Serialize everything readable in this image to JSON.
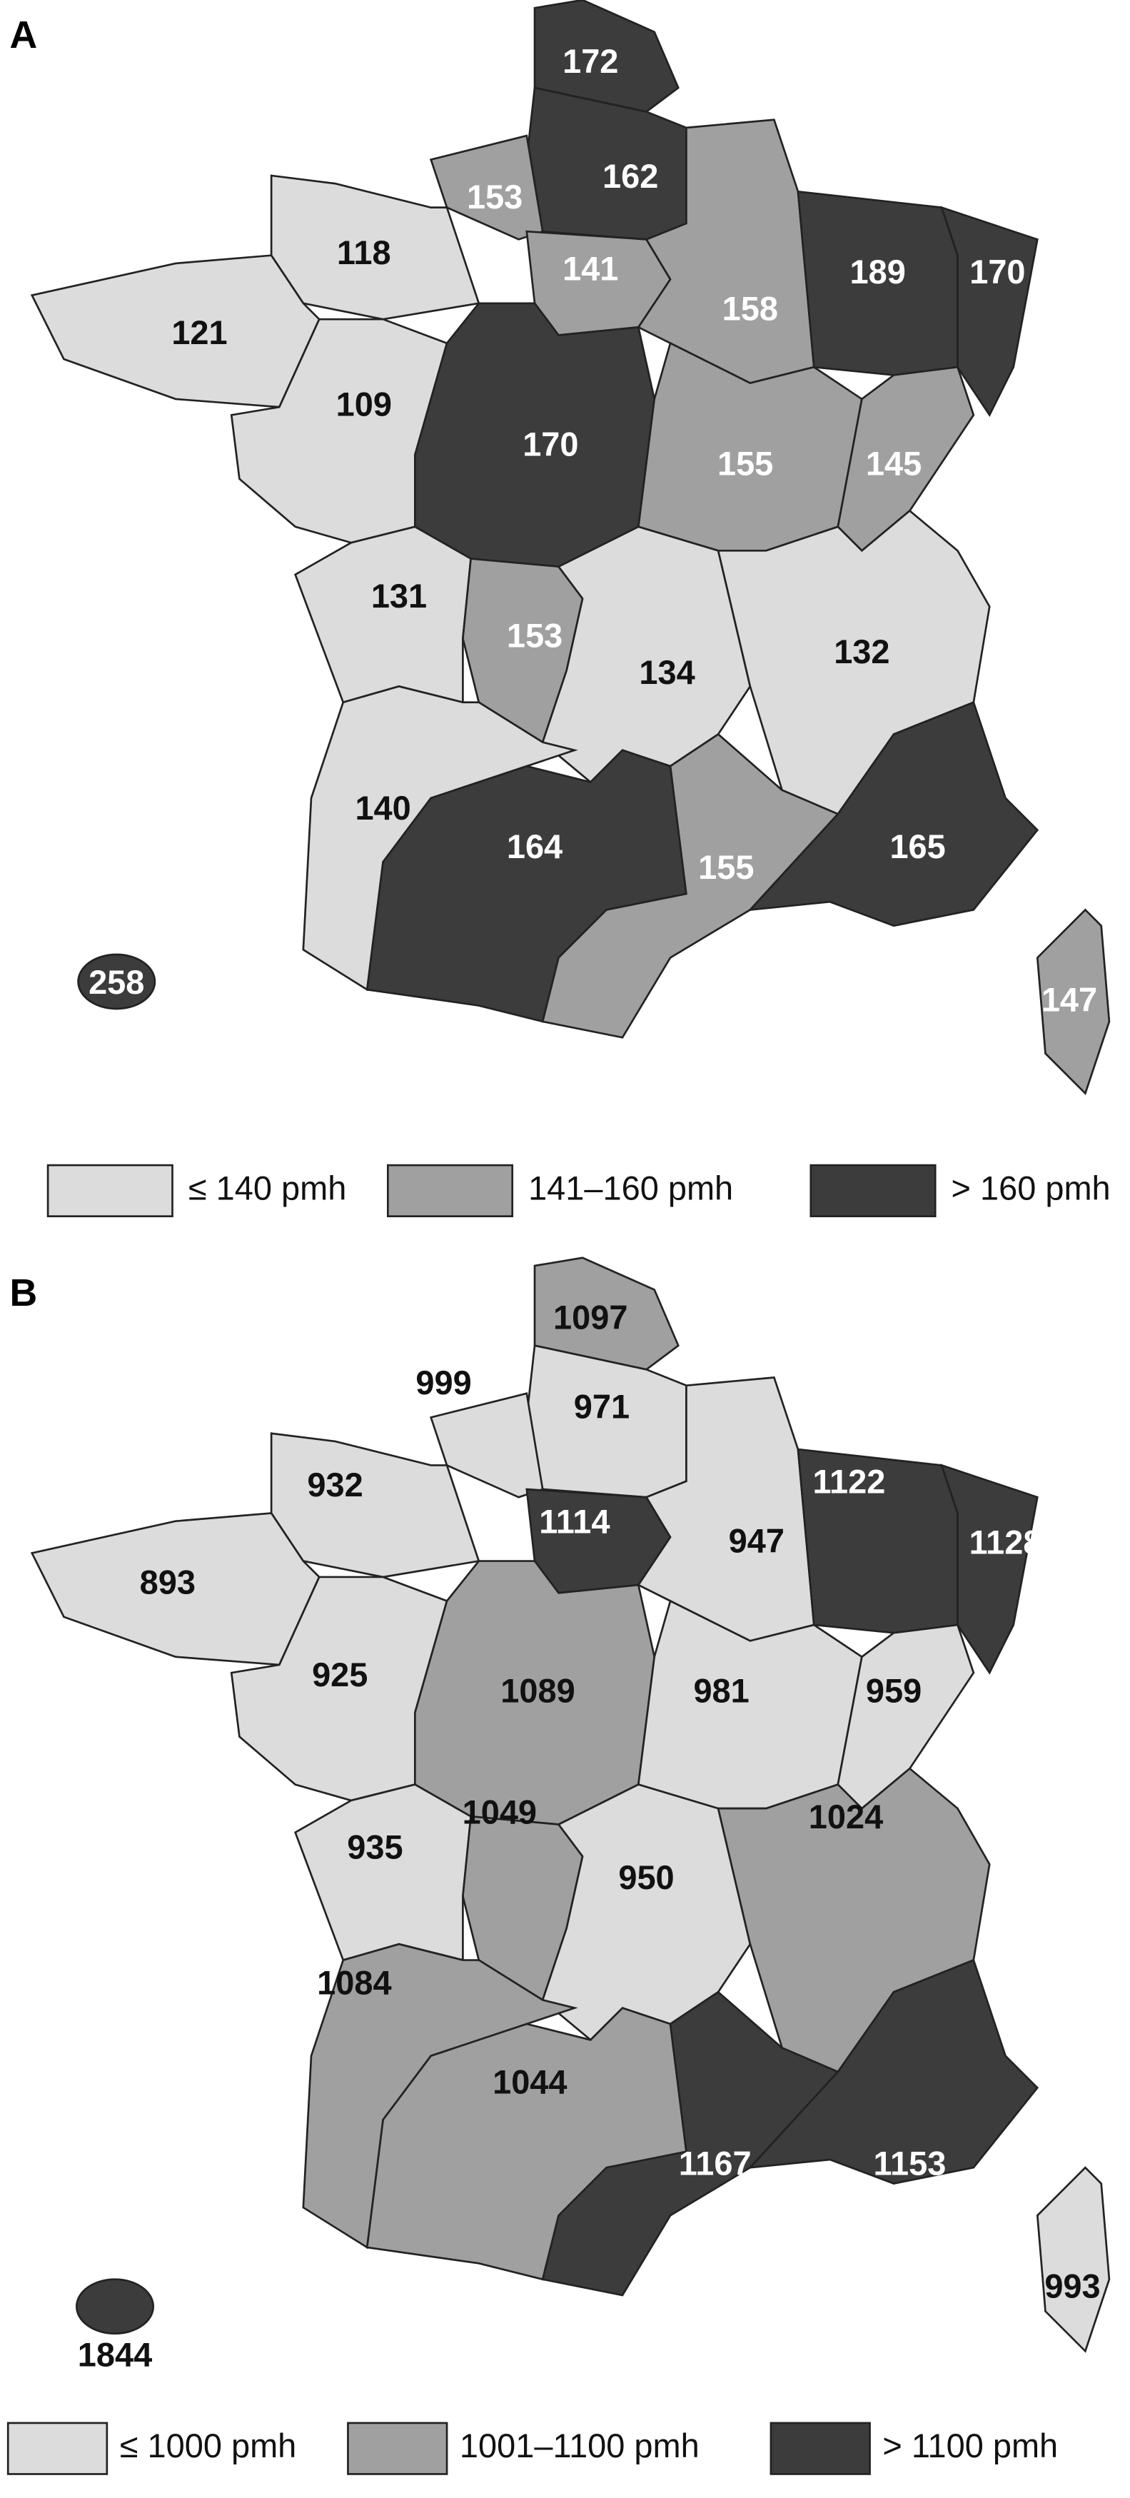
{
  "panels": [
    {
      "label": "A",
      "legend": [
        {
          "label": "≤ 140 pmh",
          "color": "#dcdcdc",
          "text_color": "#111111"
        },
        {
          "label": "141–160 pmh",
          "color": "#a0a0a0",
          "text_color": "#ffffff"
        },
        {
          "label": "> 160 pmh",
          "color": "#3c3c3c",
          "text_color": "#ffffff"
        }
      ],
      "regions": [
        {
          "value": 172,
          "class": 2
        },
        {
          "value": 162,
          "class": 2
        },
        {
          "value": 153,
          "class": 1
        },
        {
          "value": 118,
          "class": 0
        },
        {
          "value": 141,
          "class": 1
        },
        {
          "value": 158,
          "class": 1
        },
        {
          "value": 189,
          "class": 2
        },
        {
          "value": 170,
          "class": 2
        },
        {
          "value": 121,
          "class": 0
        },
        {
          "value": 109,
          "class": 0
        },
        {
          "value": 170,
          "class": 2
        },
        {
          "value": 155,
          "class": 1
        },
        {
          "value": 145,
          "class": 1
        },
        {
          "value": 131,
          "class": 0
        },
        {
          "value": 153,
          "class": 1
        },
        {
          "value": 134,
          "class": 0
        },
        {
          "value": 132,
          "class": 0
        },
        {
          "value": 140,
          "class": 0
        },
        {
          "value": 164,
          "class": 2
        },
        {
          "value": 155,
          "class": 1
        },
        {
          "value": 165,
          "class": 2
        },
        {
          "value": 258,
          "class": 2
        },
        {
          "value": 147,
          "class": 1
        }
      ]
    },
    {
      "label": "B",
      "legend": [
        {
          "label": "≤ 1000 pmh",
          "color": "#dcdcdc",
          "text_color": "#111111"
        },
        {
          "label": "1001–1100 pmh",
          "color": "#a0a0a0",
          "text_color": "#111111"
        },
        {
          "label": "> 1100 pmh",
          "color": "#3c3c3c",
          "text_color": "#ffffff"
        }
      ],
      "regions": [
        {
          "value": 1097,
          "class": 1
        },
        {
          "value": 971,
          "class": 0
        },
        {
          "value": 999,
          "class": 0
        },
        {
          "value": 932,
          "class": 0
        },
        {
          "value": 1114,
          "class": 2
        },
        {
          "value": 947,
          "class": 0
        },
        {
          "value": 1122,
          "class": 2
        },
        {
          "value": 1128,
          "class": 2
        },
        {
          "value": 893,
          "class": 0
        },
        {
          "value": 925,
          "class": 0
        },
        {
          "value": 1089,
          "class": 1
        },
        {
          "value": 981,
          "class": 0
        },
        {
          "value": 959,
          "class": 0
        },
        {
          "value": 935,
          "class": 0
        },
        {
          "value": 1049,
          "class": 1
        },
        {
          "value": 950,
          "class": 0
        },
        {
          "value": 1024,
          "class": 1
        },
        {
          "value": 1084,
          "class": 1
        },
        {
          "value": 1044,
          "class": 1
        },
        {
          "value": 1167,
          "class": 2
        },
        {
          "value": 1153,
          "class": 2
        },
        {
          "value": 1844,
          "class": 2
        },
        {
          "value": 993,
          "class": 0
        }
      ]
    }
  ]
}
